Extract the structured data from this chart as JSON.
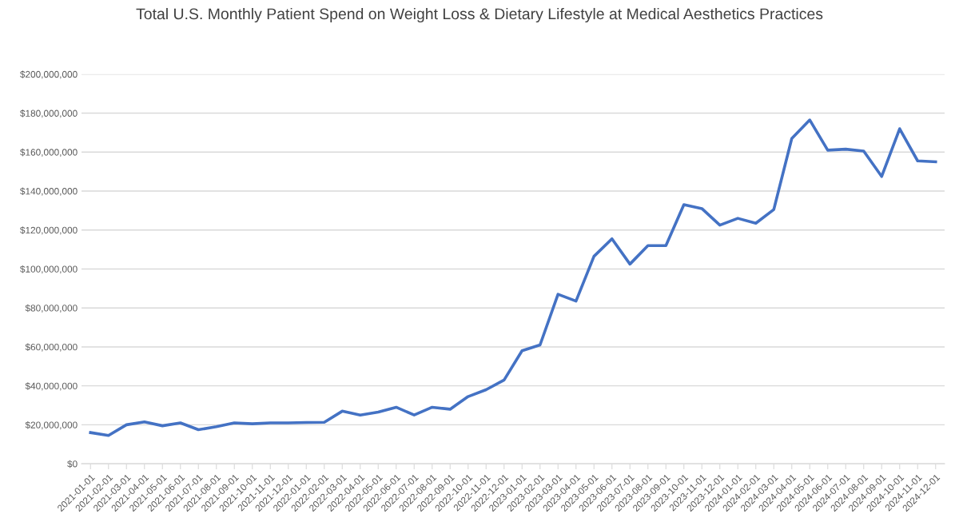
{
  "chart_data": {
    "type": "line",
    "title": "Total U.S. Monthly Patient Spend on Weight Loss & Dietary Lifestyle at Medical Aesthetics Practices",
    "categories": [
      "2021-01-01",
      "2021-02-01",
      "2021-03-01",
      "2021-04-01",
      "2021-05-01",
      "2021-06-01",
      "2021-07-01",
      "2021-08-01",
      "2021-09-01",
      "2021-10-01",
      "2021-11-01",
      "2021-12-01",
      "2022-01-01",
      "2022-02-01",
      "2022-03-01",
      "2022-04-01",
      "2022-05-01",
      "2022-06-01",
      "2022-07-01",
      "2022-08-01",
      "2022-09-01",
      "2022-10-01",
      "2022-11-01",
      "2022-12-01",
      "2023-01-01",
      "2023-02-01",
      "2023-03-01",
      "2023-04-01",
      "2023-05-01",
      "2023-06-01",
      "2023-07-01",
      "2023-08-01",
      "2023-09-01",
      "2023-10-01",
      "2023-11-01",
      "2023-12-01",
      "2024-01-01",
      "2024-02-01",
      "2024-03-01",
      "2024-04-01",
      "2024-05-01",
      "2024-06-01",
      "2024-07-01",
      "2024-08-01",
      "2024-09-01",
      "2024-10-01",
      "2024-11-01",
      "2024-12-01"
    ],
    "series": [
      {
        "color": "#4472c4",
        "values": [
          16000000,
          14500000,
          20000000,
          21500000,
          19500000,
          21000000,
          17500000,
          19000000,
          21000000,
          20500000,
          21000000,
          21000000,
          21200000,
          21300000,
          27000000,
          25000000,
          26500000,
          29000000,
          25000000,
          29000000,
          28000000,
          34500000,
          38000000,
          43000000,
          58000000,
          61000000,
          87000000,
          83500000,
          106500000,
          115500000,
          102500000,
          112000000,
          112000000,
          133000000,
          131000000,
          122500000,
          126000000,
          123500000,
          130500000,
          167000000,
          176500000,
          161000000,
          161500000,
          160500000,
          147500000,
          172000000,
          155500000,
          155000000
        ]
      }
    ],
    "ylim": [
      0,
      200000000
    ],
    "yticks": [
      {
        "value": 0,
        "label": "$0"
      },
      {
        "value": 20000000,
        "label": "$20,000,000"
      },
      {
        "value": 40000000,
        "label": "$40,000,000"
      },
      {
        "value": 60000000,
        "label": "$60,000,000"
      },
      {
        "value": 80000000,
        "label": "$80,000,000"
      },
      {
        "value": 100000000,
        "label": "$100,000,000"
      },
      {
        "value": 120000000,
        "label": "$120,000,000"
      },
      {
        "value": 140000000,
        "label": "$140,000,000"
      },
      {
        "value": 160000000,
        "label": "$160,000,000"
      },
      {
        "value": 180000000,
        "label": "$180,000,000"
      },
      {
        "value": 200000000,
        "label": "$200,000,000"
      }
    ],
    "grid": "y",
    "marker": "none",
    "line_style": "solid"
  }
}
